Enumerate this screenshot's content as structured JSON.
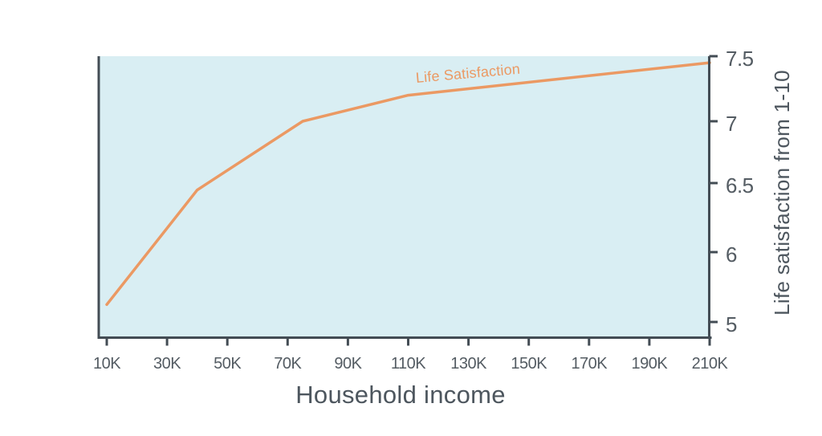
{
  "chart_data": {
    "type": "line",
    "title": "",
    "xlabel": "Household income",
    "ylabel": "Life satisfaction from 1-10",
    "grid": false,
    "legend_position": "inline-label-above-line",
    "x_range_k": [
      10,
      210
    ],
    "y_axis_note": "tick marks evenly spaced; interval 5-6 spans same distance as 0.5 intervals (non-linear scale)",
    "series": [
      {
        "name": "Life Satisfaction",
        "color": "#EB9963",
        "points": [
          {
            "income_k": 10,
            "satisfaction": 5.25
          },
          {
            "income_k": 40,
            "satisfaction": 6.45
          },
          {
            "income_k": 75,
            "satisfaction": 7.0
          },
          {
            "income_k": 110,
            "satisfaction": 7.2
          },
          {
            "income_k": 210,
            "satisfaction": 7.45
          }
        ]
      }
    ],
    "x_ticks": [
      {
        "value_k": 10,
        "label": "10K"
      },
      {
        "value_k": 30,
        "label": "30K"
      },
      {
        "value_k": 50,
        "label": "50K"
      },
      {
        "value_k": 70,
        "label": "70K"
      },
      {
        "value_k": 90,
        "label": "90K"
      },
      {
        "value_k": 110,
        "label": "110K"
      },
      {
        "value_k": 130,
        "label": "130K"
      },
      {
        "value_k": 150,
        "label": "150K"
      },
      {
        "value_k": 170,
        "label": "170K"
      },
      {
        "value_k": 190,
        "label": "190K"
      },
      {
        "value_k": 210,
        "label": "210K"
      }
    ],
    "y_ticks": [
      {
        "value": 5,
        "label": "5"
      },
      {
        "value": 6,
        "label": "6"
      },
      {
        "value": 6.5,
        "label": "6.5"
      },
      {
        "value": 7,
        "label": "7"
      },
      {
        "value": 7.5,
        "label": "7.5"
      }
    ]
  },
  "colors": {
    "page_background": "#FFFFFF",
    "plot_background": "#D9EEF3",
    "line": "#EB9963",
    "series_label_text": "#EB9963",
    "axis": "#434C54",
    "tick_label_text": "#545C63",
    "axis_title_text": "#4D565E"
  }
}
